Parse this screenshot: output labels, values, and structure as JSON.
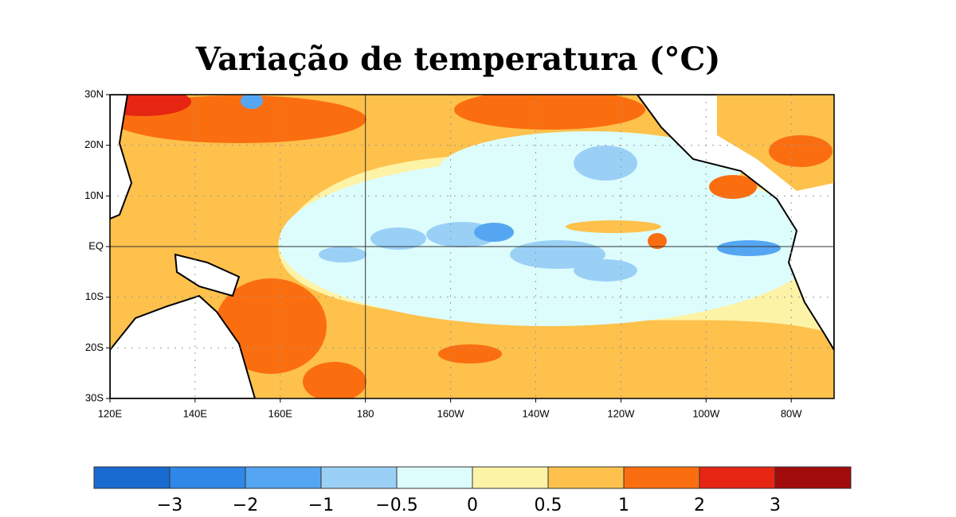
{
  "title": "Variação de temperatura (°C)",
  "map": {
    "lat_labels": [
      "30N",
      "20N",
      "10N",
      "EQ",
      "10S",
      "20S",
      "30S"
    ],
    "lon_labels": [
      "120E",
      "140E",
      "160E",
      "180",
      "160W",
      "140W",
      "120W",
      "100W",
      "80W"
    ]
  },
  "colorbar": {
    "colors": [
      "#1a6bd1",
      "#2f87e8",
      "#55a6f2",
      "#9bd0f6",
      "#ddfdfd",
      "#fdf3a6",
      "#fdc14c",
      "#fb6e10",
      "#e62512",
      "#a10b0b"
    ],
    "labels": [
      "−3",
      "−2",
      "−1",
      "−0.5",
      "0",
      "0.5",
      "1",
      "2",
      "3"
    ]
  }
}
